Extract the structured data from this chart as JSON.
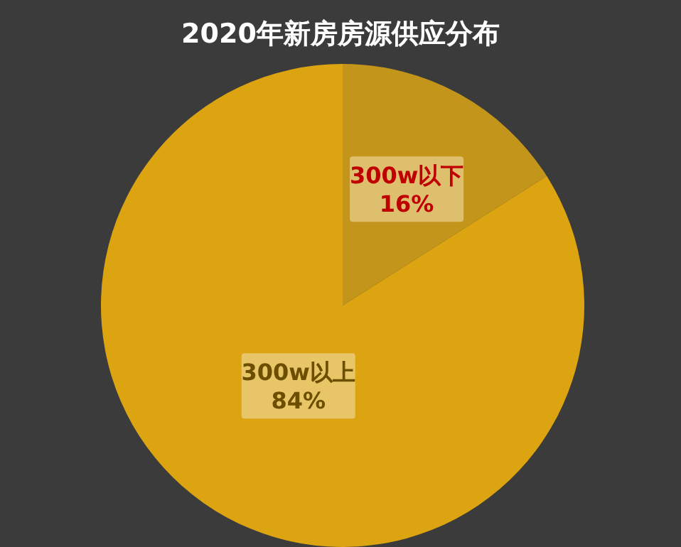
{
  "chart_data": {
    "type": "pie",
    "title": "2020年新房房源供应分布",
    "categories": [
      "300w以下",
      "300w以上"
    ],
    "values": [
      16,
      84
    ],
    "colors": [
      "#c3951b",
      "#dca410"
    ],
    "value_labels": [
      "16%",
      "84%"
    ]
  }
}
